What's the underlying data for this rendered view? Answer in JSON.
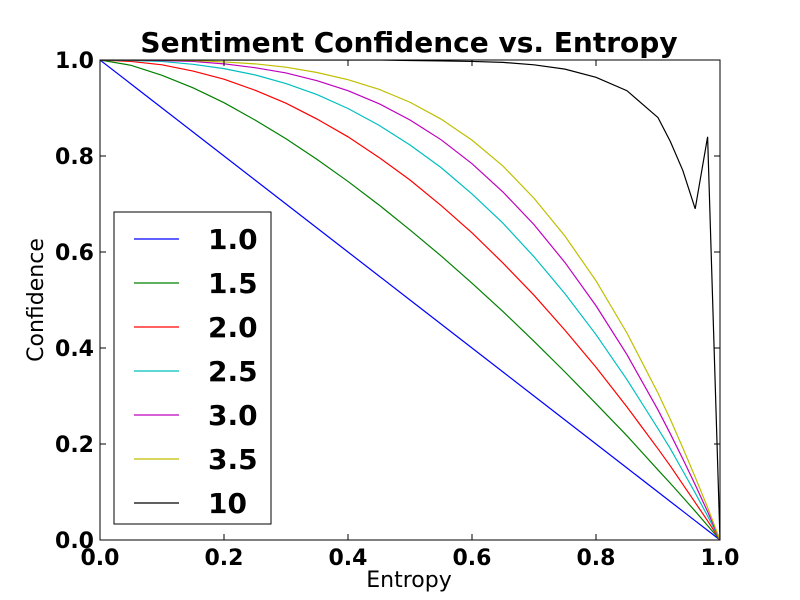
{
  "chart_data": {
    "type": "line",
    "title": "Sentiment Confidence vs. Entropy",
    "xlabel": "Entropy",
    "ylabel": "Confidence",
    "xlim": [
      0.0,
      1.0
    ],
    "ylim": [
      0.0,
      1.0
    ],
    "xticks": [
      "0.0",
      "0.2",
      "0.4",
      "0.6",
      "0.8",
      "1.0"
    ],
    "yticks": [
      "0.0",
      "0.2",
      "0.4",
      "0.6",
      "0.8",
      "1.0"
    ],
    "grid": false,
    "legend_position": "lower-left",
    "x": [
      0,
      0.05,
      0.1,
      0.15,
      0.2,
      0.25,
      0.3,
      0.35,
      0.4,
      0.45,
      0.5,
      0.55,
      0.6,
      0.65,
      0.7,
      0.75,
      0.8,
      0.85,
      0.9,
      0.92,
      0.94,
      0.96,
      0.98,
      1.0
    ],
    "series": [
      {
        "name": "1.0",
        "color": "#0000ff",
        "values": [
          1,
          0.95,
          0.9,
          0.85,
          0.8,
          0.75,
          0.7,
          0.65,
          0.6,
          0.55,
          0.5,
          0.45,
          0.4,
          0.35,
          0.3,
          0.25,
          0.2,
          0.15,
          0.1,
          0.08,
          0.06,
          0.04,
          0.02,
          0
        ]
      },
      {
        "name": "1.5",
        "color": "#008000",
        "values": [
          1,
          0.989,
          0.968,
          0.942,
          0.911,
          0.875,
          0.836,
          0.793,
          0.747,
          0.698,
          0.646,
          0.592,
          0.535,
          0.476,
          0.414,
          0.35,
          0.284,
          0.217,
          0.146,
          0.118,
          0.089,
          0.06,
          0.03,
          0
        ]
      },
      {
        "name": "2.0",
        "color": "#ff0000",
        "values": [
          1,
          0.997,
          0.99,
          0.977,
          0.96,
          0.937,
          0.91,
          0.877,
          0.84,
          0.797,
          0.75,
          0.697,
          0.64,
          0.577,
          0.51,
          0.437,
          0.36,
          0.277,
          0.19,
          0.154,
          0.116,
          0.078,
          0.04,
          0
        ]
      },
      {
        "name": "2.5",
        "color": "#00bfbf",
        "values": [
          1,
          0.999,
          0.997,
          0.991,
          0.982,
          0.969,
          0.951,
          0.928,
          0.899,
          0.864,
          0.823,
          0.776,
          0.721,
          0.66,
          0.59,
          0.513,
          0.428,
          0.334,
          0.232,
          0.19,
          0.144,
          0.098,
          0.05,
          0
        ]
      },
      {
        "name": "3.0",
        "color": "#bf00bf",
        "values": [
          1,
          1,
          0.999,
          0.997,
          0.992,
          0.984,
          0.973,
          0.957,
          0.936,
          0.909,
          0.875,
          0.834,
          0.784,
          0.725,
          0.657,
          0.578,
          0.488,
          0.386,
          0.271,
          0.221,
          0.169,
          0.115,
          0.059,
          0
        ]
      },
      {
        "name": "3.5",
        "color": "#bfbf00",
        "values": [
          1,
          1,
          1,
          0.999,
          0.996,
          0.992,
          0.985,
          0.974,
          0.959,
          0.939,
          0.912,
          0.877,
          0.833,
          0.779,
          0.712,
          0.633,
          0.54,
          0.431,
          0.306,
          0.251,
          0.192,
          0.131,
          0.068,
          0
        ]
      },
      {
        "name": "10",
        "color": "#000000",
        "values": [
          1,
          1,
          1,
          1,
          1,
          1,
          1,
          1,
          1,
          1,
          0.999,
          0.998,
          0.997,
          0.995,
          0.99,
          0.981,
          0.964,
          0.936,
          0.88,
          0.83,
          0.77,
          0.69,
          0.84,
          0
        ]
      }
    ]
  }
}
